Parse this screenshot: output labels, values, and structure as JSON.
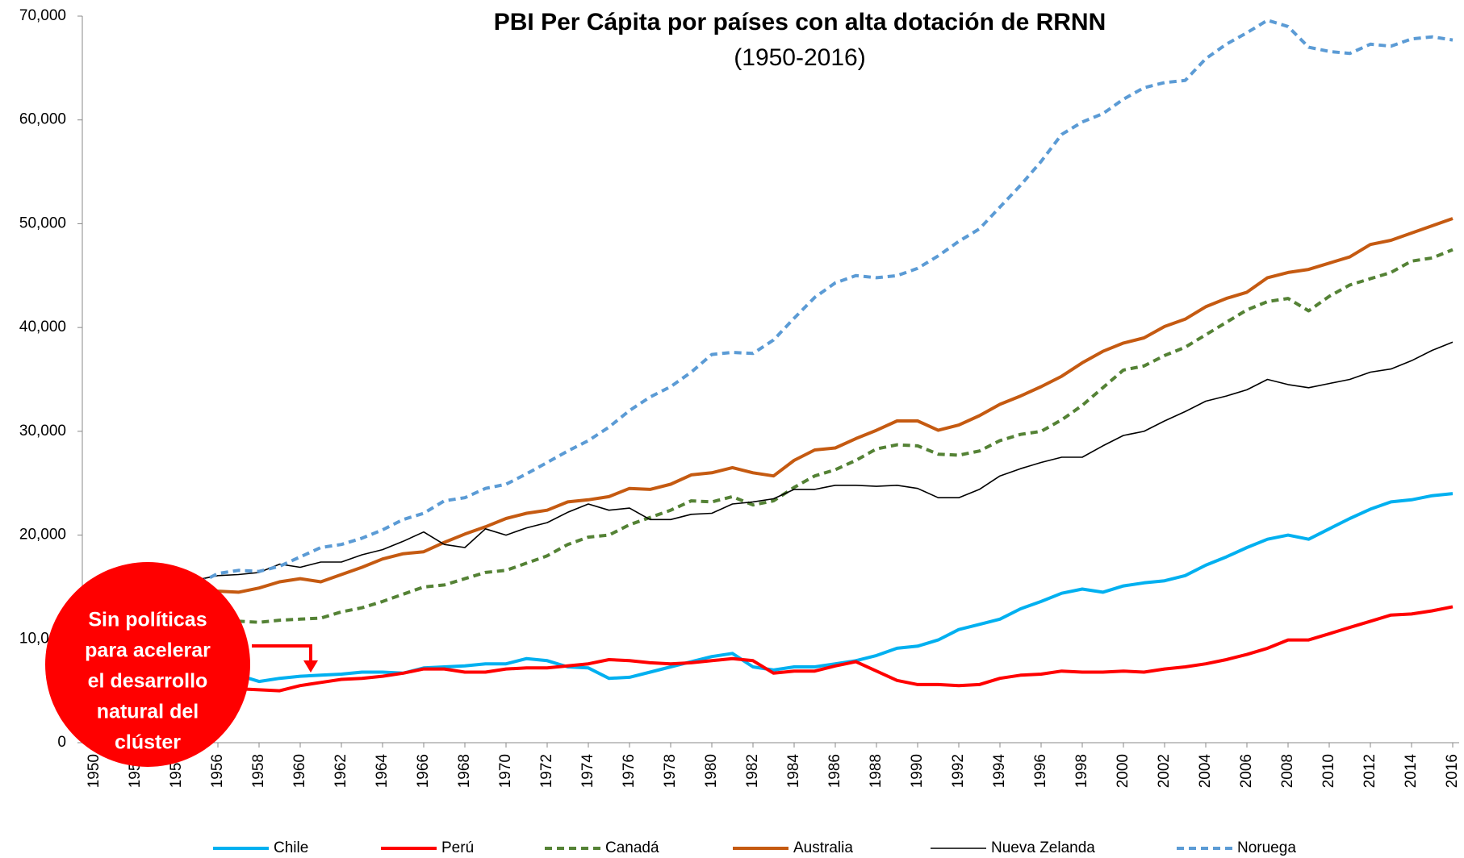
{
  "chart_data": {
    "type": "line",
    "title": "PBI Per Cápita por países con alta dotación de RRNN",
    "subtitle": "(1950-2016)",
    "annotation": [
      "Sin políticas",
      "para acelerar",
      "el desarrollo",
      "natural del",
      "clúster"
    ],
    "x": [
      1950,
      1951,
      1952,
      1953,
      1954,
      1955,
      1956,
      1957,
      1958,
      1959,
      1960,
      1961,
      1962,
      1963,
      1964,
      1965,
      1966,
      1967,
      1968,
      1969,
      1970,
      1971,
      1972,
      1973,
      1974,
      1975,
      1976,
      1977,
      1978,
      1979,
      1980,
      1981,
      1982,
      1983,
      1984,
      1985,
      1986,
      1987,
      1988,
      1989,
      1990,
      1991,
      1992,
      1993,
      1994,
      1995,
      1996,
      1997,
      1998,
      1999,
      2000,
      2001,
      2002,
      2003,
      2004,
      2005,
      2006,
      2007,
      2008,
      2009,
      2010,
      2011,
      2012,
      2013,
      2014,
      2015,
      2016
    ],
    "xlim": [
      1950,
      2016
    ],
    "xticks": [
      1950,
      1952,
      1954,
      1956,
      1958,
      1960,
      1962,
      1964,
      1966,
      1968,
      1970,
      1972,
      1974,
      1976,
      1978,
      1980,
      1982,
      1984,
      1986,
      1988,
      1990,
      1992,
      1994,
      1996,
      1998,
      2000,
      2002,
      2004,
      2006,
      2008,
      2010,
      2012,
      2014,
      2016
    ],
    "ylim": [
      0,
      70000
    ],
    "yticks": [
      0,
      {
        "value": 10000,
        "label": "10,000"
      },
      {
        "value": 20000,
        "label": "20,000"
      },
      {
        "value": 30000,
        "label": "30,000"
      },
      {
        "value": 40000,
        "label": "40,000"
      },
      {
        "value": 50000,
        "label": "50,000"
      },
      {
        "value": 60000,
        "label": "60,000"
      },
      {
        "value": 70000,
        "label": "70,000"
      }
    ],
    "grid": false,
    "legend": "bottom",
    "series": [
      {
        "name": "Chile",
        "color": "#00b0f0",
        "dashed": false,
        "values": [
          5500,
          5700,
          5900,
          6100,
          6000,
          6200,
          6200,
          6500,
          5900,
          6200,
          6400,
          6500,
          6600,
          6800,
          6800,
          6700,
          7200,
          7300,
          7400,
          7600,
          7600,
          8100,
          7900,
          7300,
          7200,
          6200,
          6300,
          6800,
          7300,
          7800,
          8300,
          8600,
          7300,
          7000,
          7300,
          7300,
          7600,
          7900,
          8400,
          9100,
          9300,
          9900,
          10900,
          11400,
          11900,
          12900,
          13600,
          14400,
          14800,
          14500,
          15100,
          15400,
          15600,
          16100,
          17100,
          17900,
          18800,
          19600,
          20000,
          19600,
          20600,
          21600,
          22500,
          23200,
          23400,
          23800,
          24000
        ]
      },
      {
        "name": "Perú",
        "color": "#ff0000",
        "dashed": false,
        "values": [
          4500,
          4700,
          4900,
          5000,
          5100,
          5200,
          5300,
          5200,
          5100,
          5000,
          5500,
          5800,
          6100,
          6200,
          6400,
          6700,
          7100,
          7100,
          6800,
          6800,
          7100,
          7200,
          7200,
          7400,
          7600,
          8000,
          7900,
          7700,
          7600,
          7700,
          7900,
          8100,
          7900,
          6700,
          6900,
          6900,
          7400,
          7800,
          6900,
          6000,
          5600,
          5600,
          5500,
          5600,
          6200,
          6500,
          6600,
          6900,
          6800,
          6800,
          6900,
          6800,
          7100,
          7300,
          7600,
          8000,
          8500,
          9100,
          9900,
          9900,
          10500,
          11100,
          11700,
          12300,
          12400,
          12700,
          13100
        ]
      },
      {
        "name": "Canadá",
        "color": "#548235",
        "dashed": true,
        "values": [
          10500,
          10800,
          11200,
          11400,
          11100,
          11700,
          11900,
          11700,
          11600,
          11800,
          11900,
          12000,
          12600,
          13000,
          13600,
          14300,
          15000,
          15200,
          15800,
          16400,
          16600,
          17300,
          18000,
          19100,
          19800,
          20000,
          21000,
          21700,
          22400,
          23300,
          23200,
          23700,
          22900,
          23300,
          24600,
          25700,
          26300,
          27200,
          28300,
          28700,
          28600,
          27800,
          27700,
          28100,
          29100,
          29700,
          30000,
          31100,
          32500,
          34200,
          35900,
          36300,
          37300,
          38100,
          39300,
          40500,
          41700,
          42500,
          42800,
          41600,
          43000,
          44100,
          44700,
          45300,
          46400,
          46700,
          47500
        ]
      },
      {
        "name": "Australia",
        "color": "#c55a11",
        "dashed": false,
        "values": [
          13500,
          13800,
          13600,
          14000,
          14600,
          14900,
          14600,
          14500,
          14900,
          15500,
          15800,
          15500,
          16200,
          16900,
          17700,
          18200,
          18400,
          19300,
          20100,
          20800,
          21600,
          22100,
          22400,
          23200,
          23400,
          23700,
          24500,
          24400,
          24900,
          25800,
          26000,
          26500,
          26000,
          25700,
          27200,
          28200,
          28400,
          29300,
          30100,
          31000,
          31000,
          30100,
          30600,
          31500,
          32600,
          33400,
          34300,
          35300,
          36600,
          37700,
          38500,
          39000,
          40100,
          40800,
          42000,
          42800,
          43400,
          44800,
          45300,
          45600,
          46200,
          46800,
          48000,
          48400,
          49100,
          49800,
          50500
        ]
      },
      {
        "name": "Nueva Zelanda",
        "color": "#000000",
        "dashed": false,
        "values": [
          14500,
          15000,
          14700,
          14900,
          15600,
          15700,
          16100,
          16200,
          16400,
          17200,
          16900,
          17400,
          17400,
          18100,
          18600,
          19400,
          20300,
          19100,
          18800,
          20600,
          20000,
          20700,
          21200,
          22200,
          23000,
          22400,
          22600,
          21500,
          21500,
          22000,
          22100,
          23000,
          23200,
          23500,
          24400,
          24400,
          24800,
          24800,
          24700,
          24800,
          24500,
          23600,
          23600,
          24400,
          25700,
          26400,
          27000,
          27500,
          27500,
          28600,
          29600,
          30000,
          31000,
          31900,
          32900,
          33400,
          34000,
          35000,
          34500,
          34200,
          34600,
          35000,
          35700,
          36000,
          36800,
          37800,
          38600
        ]
      },
      {
        "name": "Noruega",
        "color": "#5b9bd5",
        "dashed": true,
        "values": [
          12500,
          13200,
          13700,
          14200,
          14800,
          15300,
          16300,
          16600,
          16500,
          17000,
          17900,
          18800,
          19100,
          19700,
          20500,
          21500,
          22100,
          23300,
          23600,
          24500,
          24900,
          25900,
          27000,
          28100,
          29100,
          30400,
          32000,
          33300,
          34300,
          35700,
          37400,
          37600,
          37500,
          38800,
          40900,
          42900,
          44300,
          45000,
          44800,
          45000,
          45700,
          46900,
          48300,
          49500,
          51600,
          53700,
          56000,
          58600,
          59800,
          60600,
          62000,
          63100,
          63600,
          63800,
          65900,
          67300,
          68400,
          69600,
          69000,
          67000,
          66600,
          66400,
          67300,
          67100,
          67800,
          68000,
          67700
        ]
      }
    ]
  }
}
